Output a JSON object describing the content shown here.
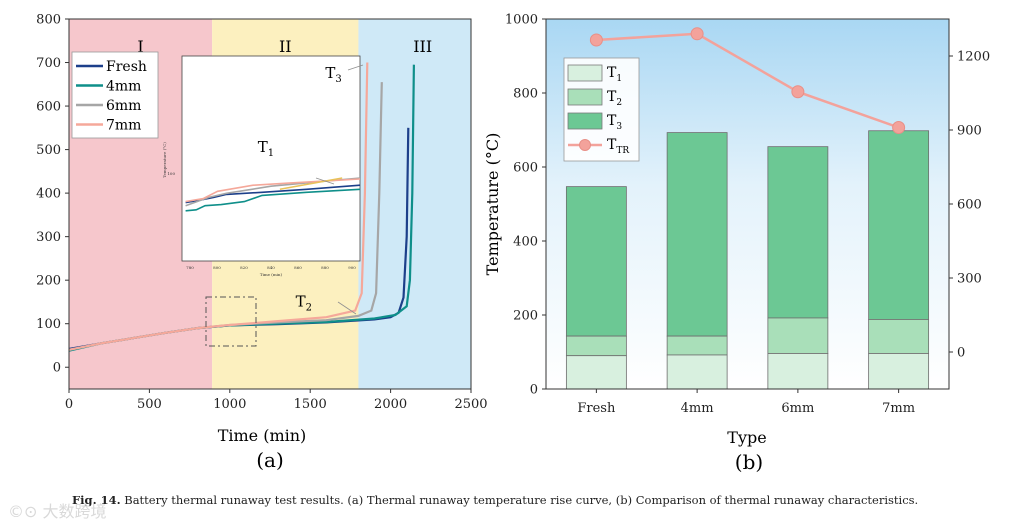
{
  "caption": {
    "label": "Fig. 14.",
    "text": "Battery thermal runaway test results. (a) Thermal runaway temperature rise curve, (b) Comparison of thermal runaway characteristics."
  },
  "watermark": "©⊙ 大数跨境",
  "colors": {
    "fresh": "#1c3f8a",
    "mm4": "#0f8f8a",
    "mm6": "#a6a6a6",
    "mm7": "#f5a89a",
    "region1": "#f6c7cc",
    "region2": "#fcf0bf",
    "region3": "#cfe9f7",
    "t1": "#d8f0df",
    "t2": "#a9dfb9",
    "t3": "#6cc894",
    "ttr": "#f3a29b"
  },
  "chart_data": [
    {
      "type": "line",
      "panel_label": "(a)",
      "xlabel": "Time (min)",
      "ylabel": "",
      "xlim": [
        0,
        2500
      ],
      "ylim": [
        -50,
        800
      ],
      "xticks": [
        "0",
        "500",
        "1000",
        "1500",
        "2000",
        "2500"
      ],
      "yticks": [
        "0",
        "100",
        "200",
        "300",
        "400",
        "500",
        "600",
        "700",
        "800"
      ],
      "regions": [
        {
          "label": "I",
          "x_start": 0,
          "x_end": 890
        },
        {
          "label": "II",
          "x_start": 890,
          "x_end": 1800
        },
        {
          "label": "III",
          "x_start": 1800,
          "x_end": 2500
        }
      ],
      "series": [
        {
          "name": "Fresh",
          "color": "#1c3f8a",
          "points": [
            [
              0,
              42
            ],
            [
              200,
              55
            ],
            [
              400,
              67
            ],
            [
              600,
              79
            ],
            [
              800,
              90
            ],
            [
              1000,
              96
            ],
            [
              1300,
              99
            ],
            [
              1600,
              103
            ],
            [
              1900,
              110
            ],
            [
              2000,
              115
            ],
            [
              2050,
              125
            ],
            [
              2080,
              160
            ],
            [
              2100,
              300
            ],
            [
              2110,
              550
            ]
          ]
        },
        {
          "name": "4mm",
          "color": "#0f8f8a",
          "points": [
            [
              0,
              38
            ],
            [
              200,
              55
            ],
            [
              400,
              67
            ],
            [
              600,
              79
            ],
            [
              800,
              90
            ],
            [
              1000,
              96
            ],
            [
              1300,
              100
            ],
            [
              1600,
              104
            ],
            [
              1900,
              112
            ],
            [
              2030,
              120
            ],
            [
              2100,
              140
            ],
            [
              2120,
              200
            ],
            [
              2135,
              400
            ],
            [
              2145,
              695
            ]
          ]
        },
        {
          "name": "6mm",
          "color": "#a6a6a6",
          "points": [
            [
              0,
              40
            ],
            [
              200,
              55
            ],
            [
              400,
              67
            ],
            [
              600,
              79
            ],
            [
              800,
              90
            ],
            [
              1000,
              97
            ],
            [
              1300,
              103
            ],
            [
              1600,
              108
            ],
            [
              1800,
              118
            ],
            [
              1880,
              130
            ],
            [
              1910,
              170
            ],
            [
              1930,
              400
            ],
            [
              1945,
              655
            ]
          ]
        },
        {
          "name": "7mm",
          "color": "#f5a89a",
          "points": [
            [
              0,
              40
            ],
            [
              200,
              55
            ],
            [
              400,
              67
            ],
            [
              600,
              79
            ],
            [
              800,
              90
            ],
            [
              1000,
              97
            ],
            [
              1300,
              106
            ],
            [
              1600,
              115
            ],
            [
              1780,
              130
            ],
            [
              1820,
              170
            ],
            [
              1840,
              400
            ],
            [
              1855,
              700
            ]
          ]
        }
      ],
      "annotations": [
        {
          "text": "T",
          "sub": "3",
          "x": 1645,
          "y": 665
        },
        {
          "text": "T",
          "sub": "2",
          "x": 1460,
          "y": 140
        },
        {
          "text": "T",
          "sub": "1",
          "x": 1225,
          "y": 495
        }
      ],
      "inset": {
        "ylabel": "Temperature (°C)",
        "xlabel": "Time (min)",
        "xticks": [
          "780",
          "800",
          "820",
          "840",
          "860",
          "880",
          "900"
        ],
        "ytick": "100"
      }
    },
    {
      "type": "bar",
      "panel_label": "(b)",
      "title": "",
      "xlabel": "Type",
      "ylabel": "Temperature (°C)",
      "categories": [
        "Fresh",
        "4mm",
        "6mm",
        "7mm"
      ],
      "ylim": [
        0,
        1000
      ],
      "yticks": [
        "0",
        "200",
        "400",
        "600",
        "800",
        "1000"
      ],
      "y2lim": [
        -150,
        1350
      ],
      "y2ticks": [
        "0",
        "300",
        "600",
        "900",
        "1200"
      ],
      "series": [
        {
          "name": "T",
          "sub": "1",
          "color": "#d8f0df",
          "values": [
            90,
            92,
            96,
            96
          ]
        },
        {
          "name": "T",
          "sub": "2",
          "color": "#a9dfb9",
          "values": [
            143,
            143,
            192,
            188
          ]
        },
        {
          "name": "T",
          "sub": "3",
          "color": "#6cc894",
          "values": [
            547,
            693,
            655,
            698
          ]
        },
        {
          "name": "T",
          "sub": "TR",
          "color": "#f3a29b",
          "axis": "right",
          "kind": "line",
          "values": [
            1265,
            1290,
            1055,
            910
          ]
        }
      ]
    }
  ]
}
